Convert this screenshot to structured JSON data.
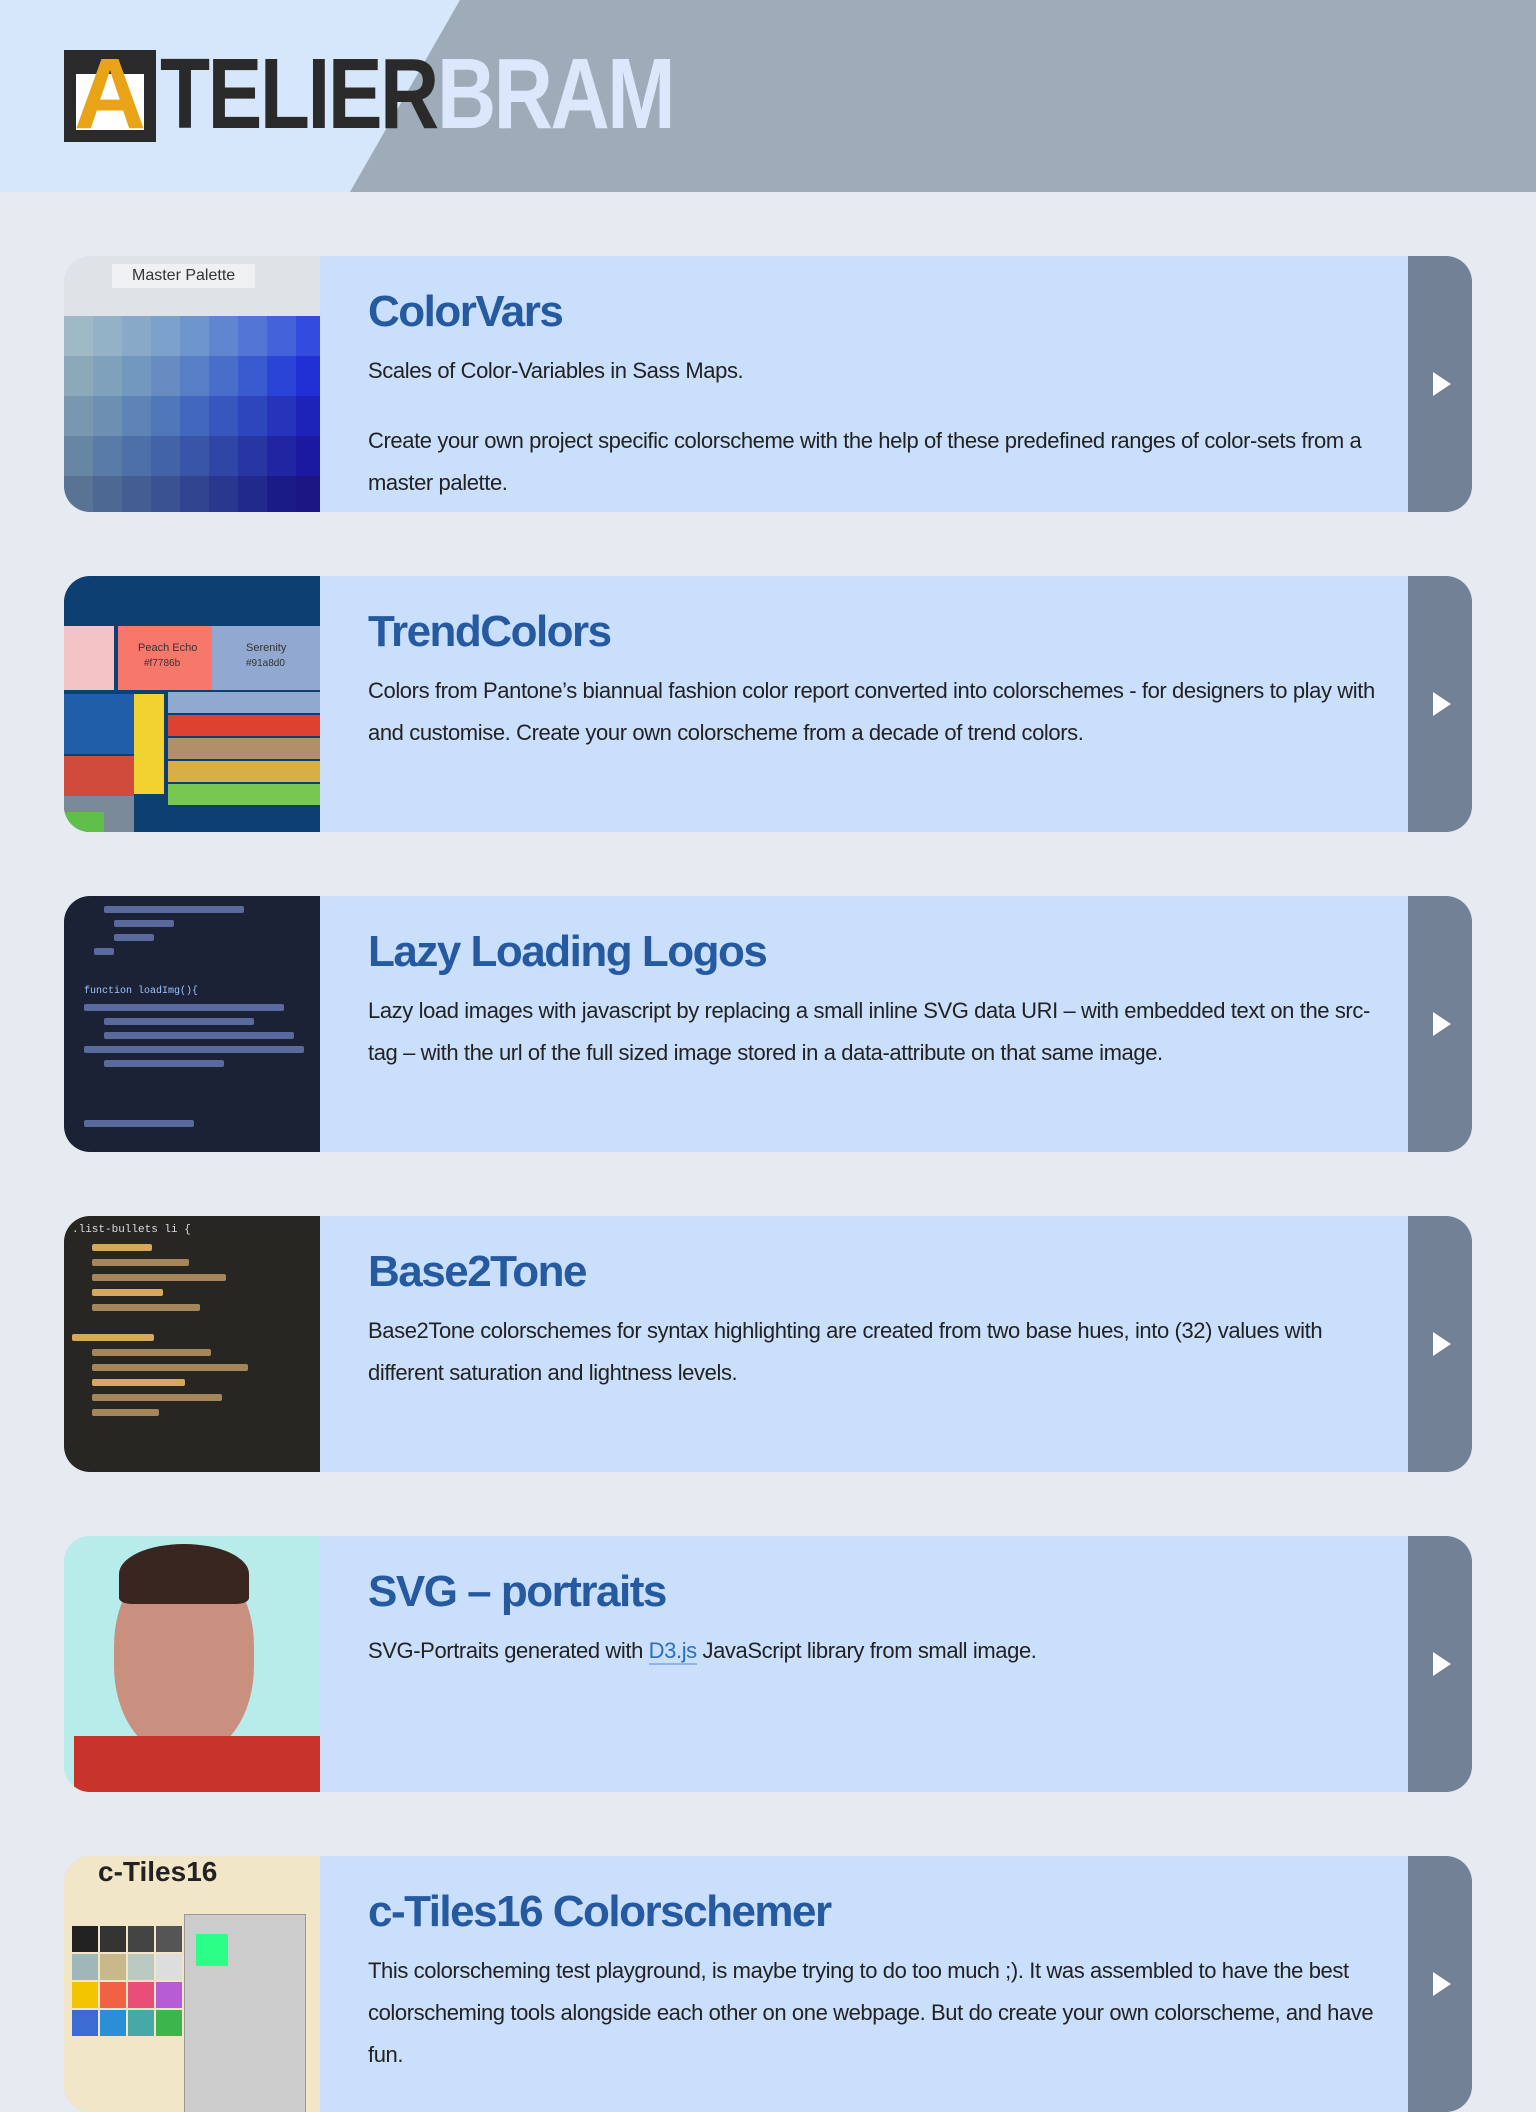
{
  "header": {
    "logo": {
      "initial": "A",
      "first": "TELIER",
      "second": "BRAM"
    }
  },
  "projects": [
    {
      "title": "ColorVars",
      "paragraphs": [
        "Scales of Color-Variables in Sass Maps.",
        "Create your own project specific colorscheme with the help of these predefined ranges of color-sets from a master palette."
      ],
      "thumb_labels": [
        "Master Palette"
      ]
    },
    {
      "title": "TrendColors",
      "paragraphs": [
        "Colors from Pantone’s biannual fashion color report converted into colorschemes - for designers to play with and customise. Create your own colorscheme from a decade of trend colors."
      ],
      "thumb_labels": [
        "Peach Echo",
        "#f7786b",
        "Serenity",
        "#91a8d0"
      ]
    },
    {
      "title": "Lazy Loading Logos",
      "paragraphs": [
        "Lazy load images with javascript by replacing a small inline SVG data URI – with embedded text on the src-tag – with the url of the full sized image stored in a data-attribute on that same image."
      ],
      "thumb_labels": [
        "function loadImg(){"
      ]
    },
    {
      "title": "Base2Tone",
      "paragraphs": [
        "Base2Tone colorschemes for syntax highlighting are created from two base hues, into (32) values with different saturation and lightness levels."
      ],
      "thumb_labels": [
        ".list-bullets li {"
      ]
    },
    {
      "title": "SVG – portraits",
      "paragraphs": [
        {
          "before": "SVG-Portraits generated with ",
          "link": "D3.js",
          "after": " JavaScript library from small image."
        }
      ],
      "thumb_labels": []
    },
    {
      "title": "c-Tiles16 Colorschemer",
      "paragraphs": [
        "This colorscheming test playground, is maybe trying to do too much ;). It was assembled to have the best colorscheming tools alongside each other on one webpage. But do create your own colorscheme, and have fun."
      ],
      "thumb_labels": [
        "c-Tiles16"
      ]
    }
  ]
}
